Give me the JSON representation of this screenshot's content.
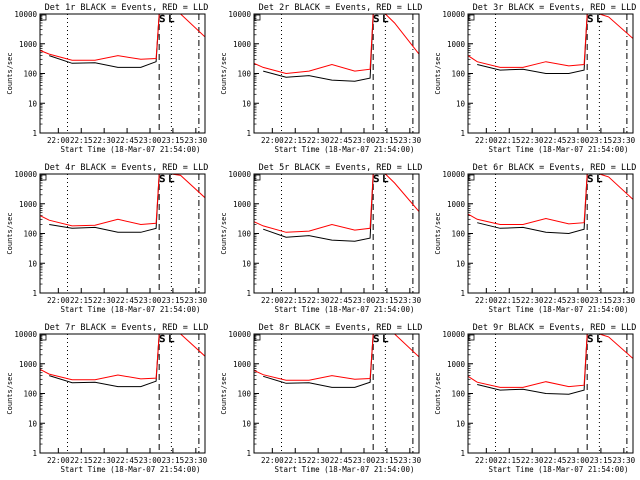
{
  "chart_data": [
    {
      "type": "line",
      "title": "Det 1r BLACK = Events, RED = LLD",
      "ylabel": "Counts/sec",
      "xlabel": "Start Time (18-Mar-07 21:54:00)",
      "y_scale": "log",
      "ylim": [
        1,
        10000
      ],
      "x_ticks": [
        "22:00",
        "22:15",
        "22:30",
        "22:45",
        "23:00",
        "23:15",
        "23:30"
      ],
      "xlim_minutes_after_start": [
        -6,
        102
      ],
      "markers": [
        "S",
        "L"
      ],
      "series": [
        {
          "color": "#000000",
          "x": [
            0,
            15,
            30,
            45,
            60,
            70,
            72,
            78
          ],
          "y": [
            400,
            220,
            230,
            160,
            160,
            250,
            10000,
            10000
          ]
        },
        {
          "color": "#ff0000",
          "x": [
            -6,
            0,
            15,
            30,
            45,
            60,
            70,
            72,
            74,
            80,
            86,
            102
          ],
          "y": [
            600,
            450,
            280,
            280,
            400,
            300,
            320,
            10000,
            10000,
            10000,
            10000,
            1700
          ]
        }
      ]
    },
    {
      "type": "line",
      "title": "Det 2r BLACK = Events, RED = LLD",
      "ylabel": "Counts/sec",
      "xlabel": "Start Time (18-Mar-07 21:54:00)",
      "y_scale": "log",
      "ylim": [
        1,
        10000
      ],
      "x_ticks": [
        "22:00",
        "22:15",
        "22:30",
        "22:45",
        "23:00",
        "23:15",
        "23:30"
      ],
      "xlim_minutes_after_start": [
        -6,
        102
      ],
      "markers": [
        "S",
        "L"
      ],
      "series": [
        {
          "color": "#000000",
          "x": [
            0,
            15,
            30,
            45,
            60,
            70,
            72,
            78
          ],
          "y": [
            120,
            75,
            85,
            60,
            55,
            70,
            10000,
            10000
          ]
        },
        {
          "color": "#ff0000",
          "x": [
            -6,
            0,
            15,
            30,
            45,
            60,
            70,
            72,
            74,
            80,
            86,
            102
          ],
          "y": [
            220,
            160,
            100,
            120,
            200,
            120,
            140,
            10000,
            10000,
            10000,
            5000,
            450
          ]
        }
      ]
    },
    {
      "type": "line",
      "title": "Det 3r BLACK = Events, RED = LLD",
      "ylabel": "Counts/sec",
      "xlabel": "Start Time (18-Mar-07 21:54:00)",
      "y_scale": "log",
      "ylim": [
        1,
        10000
      ],
      "x_ticks": [
        "22:00",
        "22:15",
        "22:30",
        "22:45",
        "23:00",
        "23:15",
        "23:30"
      ],
      "xlim_minutes_after_start": [
        -6,
        102
      ],
      "markers": [
        "S",
        "L"
      ],
      "series": [
        {
          "color": "#000000",
          "x": [
            0,
            15,
            30,
            45,
            60,
            70,
            72,
            78
          ],
          "y": [
            200,
            130,
            140,
            100,
            100,
            130,
            10000,
            10000
          ]
        },
        {
          "color": "#ff0000",
          "x": [
            -6,
            0,
            15,
            30,
            45,
            60,
            70,
            72,
            74,
            80,
            86,
            102
          ],
          "y": [
            400,
            250,
            160,
            160,
            250,
            180,
            200,
            10000,
            10000,
            10000,
            8000,
            1500
          ]
        }
      ]
    },
    {
      "type": "line",
      "title": "Det 4r BLACK = Events, RED = LLD",
      "ylabel": "Counts/sec",
      "xlabel": "Start Time (18-Mar-07 21:54:00)",
      "y_scale": "log",
      "ylim": [
        1,
        10000
      ],
      "x_ticks": [
        "22:00",
        "22:15",
        "22:30",
        "22:45",
        "23:00",
        "23:15",
        "23:30"
      ],
      "xlim_minutes_after_start": [
        -6,
        102
      ],
      "markers": [
        "S",
        "L"
      ],
      "series": [
        {
          "color": "#000000",
          "x": [
            0,
            15,
            30,
            45,
            60,
            70,
            72,
            78
          ],
          "y": [
            200,
            150,
            160,
            110,
            110,
            150,
            10000,
            10000
          ]
        },
        {
          "color": "#ff0000",
          "x": [
            -6,
            0,
            15,
            30,
            45,
            60,
            70,
            72,
            74,
            80,
            86,
            102
          ],
          "y": [
            400,
            280,
            180,
            190,
            300,
            200,
            220,
            10000,
            10000,
            10000,
            9000,
            1600
          ]
        }
      ]
    },
    {
      "type": "line",
      "title": "Det 5r BLACK = Events, RED = LLD",
      "ylabel": "Counts/sec",
      "xlabel": "Start Time (18-Mar-07 21:54:00)",
      "y_scale": "log",
      "ylim": [
        1,
        10000
      ],
      "x_ticks": [
        "22:00",
        "22:15",
        "22:30",
        "22:45",
        "23:00",
        "23:15",
        "23:30"
      ],
      "xlim_minutes_after_start": [
        -6,
        102
      ],
      "markers": [
        "S",
        "L"
      ],
      "series": [
        {
          "color": "#000000",
          "x": [
            0,
            15,
            30,
            45,
            60,
            70,
            72,
            78
          ],
          "y": [
            140,
            75,
            85,
            60,
            55,
            70,
            10000,
            10000
          ]
        },
        {
          "color": "#ff0000",
          "x": [
            -6,
            0,
            15,
            30,
            45,
            60,
            70,
            72,
            74,
            80,
            86,
            102
          ],
          "y": [
            250,
            180,
            110,
            120,
            200,
            130,
            150,
            10000,
            10000,
            10000,
            5000,
            550
          ]
        }
      ]
    },
    {
      "type": "line",
      "title": "Det 6r BLACK = Events, RED = LLD",
      "ylabel": "Counts/sec",
      "xlabel": "Start Time (18-Mar-07 21:54:00)",
      "y_scale": "log",
      "ylim": [
        1,
        10000
      ],
      "x_ticks": [
        "22:00",
        "22:15",
        "22:30",
        "22:45",
        "23:00",
        "23:15",
        "23:30"
      ],
      "xlim_minutes_after_start": [
        -6,
        102
      ],
      "markers": [
        "S",
        "L"
      ],
      "series": [
        {
          "color": "#000000",
          "x": [
            0,
            15,
            30,
            45,
            60,
            70,
            72,
            78
          ],
          "y": [
            230,
            150,
            160,
            110,
            100,
            140,
            10000,
            10000
          ]
        },
        {
          "color": "#ff0000",
          "x": [
            -6,
            0,
            15,
            30,
            45,
            60,
            70,
            72,
            74,
            80,
            86,
            102
          ],
          "y": [
            450,
            300,
            200,
            200,
            320,
            210,
            230,
            10000,
            10000,
            10000,
            8000,
            1400
          ]
        }
      ]
    },
    {
      "type": "line",
      "title": "Det 7r BLACK = Events, RED = LLD",
      "ylabel": "Counts/sec",
      "xlabel": "Start Time (18-Mar-07 21:54:00)",
      "y_scale": "log",
      "ylim": [
        1,
        10000
      ],
      "x_ticks": [
        "22:00",
        "22:15",
        "22:30",
        "22:45",
        "23:00",
        "23:15",
        "23:30"
      ],
      "xlim_minutes_after_start": [
        -6,
        102
      ],
      "markers": [
        "S",
        "L"
      ],
      "series": [
        {
          "color": "#000000",
          "x": [
            0,
            15,
            30,
            45,
            60,
            70,
            72,
            78
          ],
          "y": [
            400,
            230,
            240,
            170,
            170,
            260,
            10000,
            10000
          ]
        },
        {
          "color": "#ff0000",
          "x": [
            -6,
            0,
            15,
            30,
            45,
            60,
            70,
            72,
            74,
            80,
            86,
            102
          ],
          "y": [
            650,
            450,
            290,
            290,
            420,
            310,
            330,
            10000,
            10000,
            10000,
            10000,
            1800
          ]
        }
      ]
    },
    {
      "type": "line",
      "title": "Det 8r BLACK = Events, RED = LLD",
      "ylabel": "Counts/sec",
      "xlabel": "Start Time (18-Mar-07 21:54:00)",
      "y_scale": "log",
      "ylim": [
        1,
        10000
      ],
      "x_ticks": [
        "22:00",
        "22:15",
        "22:30",
        "22:45",
        "23:00",
        "23:15",
        "23:30"
      ],
      "xlim_minutes_after_start": [
        -6,
        102
      ],
      "markers": [
        "S",
        "L"
      ],
      "series": [
        {
          "color": "#000000",
          "x": [
            0,
            15,
            30,
            45,
            60,
            70,
            72,
            78
          ],
          "y": [
            380,
            220,
            230,
            160,
            160,
            240,
            10000,
            10000
          ]
        },
        {
          "color": "#ff0000",
          "x": [
            -6,
            0,
            15,
            30,
            45,
            60,
            70,
            72,
            74,
            80,
            86,
            102
          ],
          "y": [
            600,
            430,
            280,
            280,
            400,
            300,
            320,
            10000,
            10000,
            10000,
            10000,
            1700
          ]
        }
      ]
    },
    {
      "type": "line",
      "title": "Det 9r BLACK = Events, RED = LLD",
      "ylabel": "Counts/sec",
      "xlabel": "Start Time (18-Mar-07 21:54:00)",
      "y_scale": "log",
      "ylim": [
        1,
        10000
      ],
      "x_ticks": [
        "22:00",
        "22:15",
        "22:30",
        "22:45",
        "23:00",
        "23:15",
        "23:30"
      ],
      "xlim_minutes_after_start": [
        -6,
        102
      ],
      "markers": [
        "S",
        "L"
      ],
      "series": [
        {
          "color": "#000000",
          "x": [
            0,
            15,
            30,
            45,
            60,
            70,
            72,
            78
          ],
          "y": [
            200,
            130,
            140,
            100,
            95,
            130,
            10000,
            10000
          ]
        },
        {
          "color": "#ff0000",
          "x": [
            -6,
            0,
            15,
            30,
            45,
            60,
            70,
            72,
            74,
            80,
            86,
            102
          ],
          "y": [
            380,
            240,
            160,
            160,
            250,
            170,
            190,
            10000,
            10000,
            10000,
            8000,
            1500
          ]
        }
      ]
    }
  ]
}
